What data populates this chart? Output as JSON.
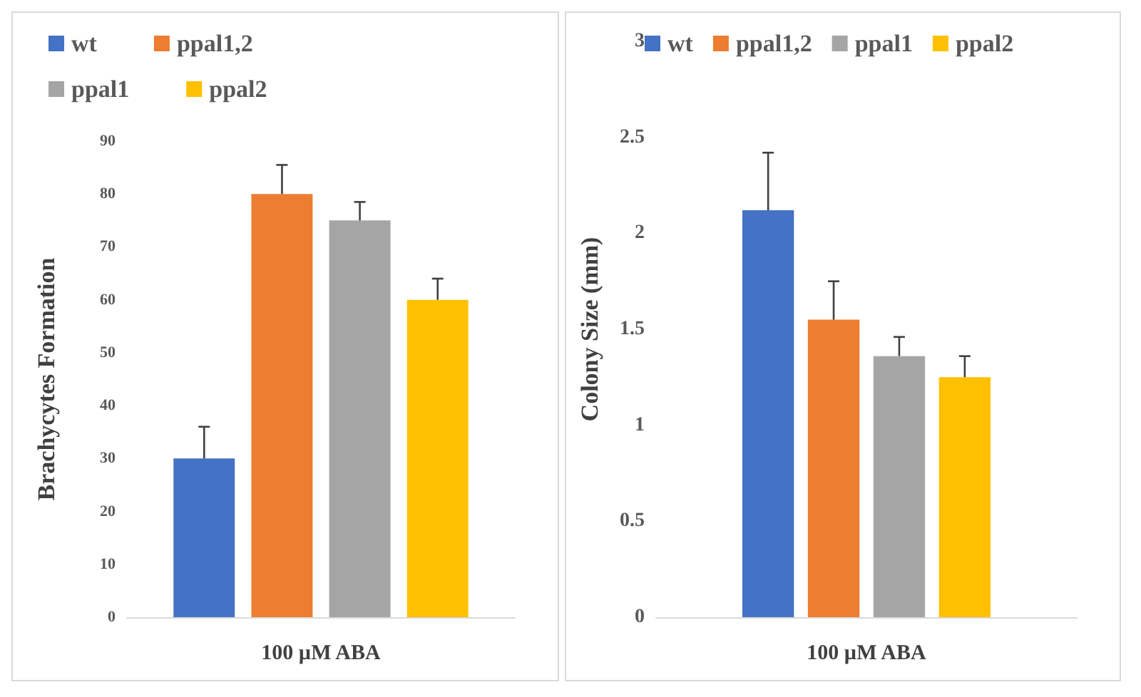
{
  "chart_data": [
    {
      "type": "bar",
      "categories": [
        null
      ],
      "xlabel": "100 µM ABA",
      "ylabel": "Brachycytes Formation",
      "ylim": [
        0,
        90
      ],
      "yticks": [
        0,
        10,
        20,
        30,
        40,
        50,
        60,
        70,
        80,
        90
      ],
      "grid": false,
      "legend": "top",
      "series": [
        {
          "name": "wt",
          "color": "#4472c4",
          "values": [
            30
          ],
          "errors": [
            6
          ]
        },
        {
          "name": "ppal1,2",
          "color": "#ed7d31",
          "values": [
            80
          ],
          "errors": [
            5.5
          ]
        },
        {
          "name": "ppal1",
          "color": "#a5a5a5",
          "values": [
            75
          ],
          "errors": [
            3.5
          ]
        },
        {
          "name": "ppal2",
          "color": "#ffc000",
          "values": [
            60
          ],
          "errors": [
            4
          ]
        }
      ]
    },
    {
      "type": "bar",
      "categories": [
        null
      ],
      "xlabel": "100 µM ABA",
      "ylabel": "Colony Size (mm)",
      "ylim": [
        0,
        3
      ],
      "yticks": [
        0,
        0.5,
        1,
        1.5,
        2,
        2.5,
        3
      ],
      "grid": false,
      "legend": "top",
      "series": [
        {
          "name": "wt",
          "color": "#4472c4",
          "values": [
            2.12
          ],
          "errors": [
            0.3
          ]
        },
        {
          "name": "ppal1,2",
          "color": "#ed7d31",
          "values": [
            1.55
          ],
          "errors": [
            0.2
          ]
        },
        {
          "name": "ppal1",
          "color": "#a5a5a5",
          "values": [
            1.36
          ],
          "errors": [
            0.1
          ]
        },
        {
          "name": "ppal2",
          "color": "#ffc000",
          "values": [
            1.25
          ],
          "errors": [
            0.11
          ]
        }
      ]
    }
  ]
}
